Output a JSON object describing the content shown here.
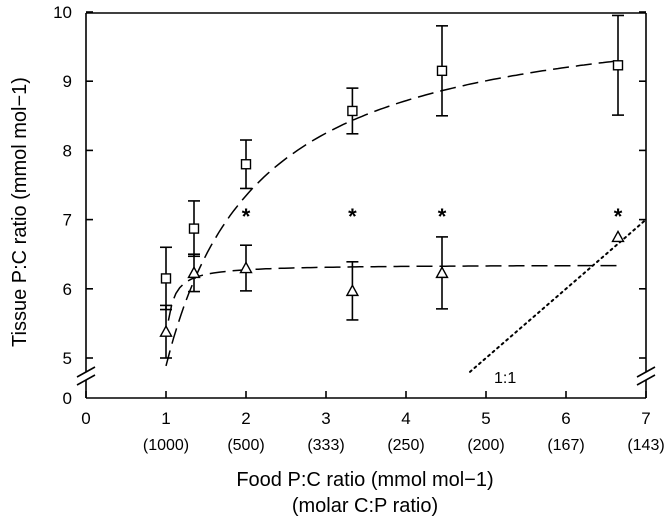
{
  "chart_data": {
    "type": "scatter",
    "xlabel": "Food P:C ratio (mmol mol−1)",
    "xlabel_secondary": "(molar C:P ratio)",
    "ylabel": "Tissue P:C ratio (mmol mol−1)",
    "xlim": [
      0,
      7
    ],
    "ylim": [
      4.5,
      10
    ],
    "y_axis_break": true,
    "x_ticks": [
      "0",
      "1",
      "2",
      "3",
      "4",
      "5",
      "6",
      "7"
    ],
    "x_ticks_secondary": [
      "(1000)",
      "(500)",
      "(333)",
      "(250)",
      "(200)",
      "(167)",
      "(143)"
    ],
    "y_ticks": [
      "0",
      "5",
      "6",
      "7",
      "8",
      "9",
      "10"
    ],
    "grid": false,
    "series": [
      {
        "marker": "square",
        "x": [
          1.0,
          1.35,
          2.0,
          3.33,
          4.45,
          6.65
        ],
        "y": [
          6.15,
          6.87,
          7.8,
          8.57,
          9.15,
          9.23
        ],
        "error": [
          0.45,
          0.4,
          0.35,
          0.33,
          0.65,
          0.72
        ],
        "fit": "dashed"
      },
      {
        "marker": "triangle",
        "x": [
          1.0,
          1.35,
          2.0,
          3.33,
          4.45,
          6.65
        ],
        "y": [
          5.38,
          6.23,
          6.3,
          5.97,
          6.23,
          6.75
        ],
        "error": [
          0.38,
          0.27,
          0.33,
          0.42,
          0.52,
          0.0
        ],
        "fit": "dashed"
      }
    ],
    "significance_markers": {
      "symbol": "*",
      "x": [
        2.0,
        3.33,
        4.45,
        6.65
      ]
    },
    "reference_line": {
      "label": "1:1",
      "style": "dotted"
    }
  }
}
